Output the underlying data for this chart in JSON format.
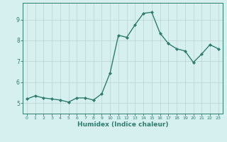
{
  "x": [
    0,
    1,
    2,
    3,
    4,
    5,
    6,
    7,
    8,
    9,
    10,
    11,
    12,
    13,
    14,
    15,
    16,
    17,
    18,
    19,
    20,
    21,
    22,
    23
  ],
  "y": [
    5.2,
    5.35,
    5.25,
    5.2,
    5.15,
    5.05,
    5.25,
    5.25,
    5.15,
    5.45,
    6.45,
    8.25,
    8.15,
    8.75,
    9.3,
    9.35,
    8.35,
    7.85,
    7.6,
    7.5,
    6.95,
    7.35,
    7.8,
    7.6
  ],
  "line_color": "#2e7d6e",
  "marker": "D",
  "marker_size": 2.0,
  "line_width": 1.0,
  "xlabel": "Humidex (Indice chaleur)",
  "xlabel_fontsize": 6.5,
  "bg_color": "#d6f0f0",
  "grid_color": "#c0d8d8",
  "axis_color": "#2e7d6e",
  "tick_color": "#2e7d6e",
  "ylim": [
    4.5,
    9.8
  ],
  "yticks": [
    5,
    6,
    7,
    8,
    9
  ],
  "xlim": [
    -0.5,
    23.5
  ],
  "xticks": [
    0,
    1,
    2,
    3,
    4,
    5,
    6,
    7,
    8,
    9,
    10,
    11,
    12,
    13,
    14,
    15,
    16,
    17,
    18,
    19,
    20,
    21,
    22,
    23
  ]
}
